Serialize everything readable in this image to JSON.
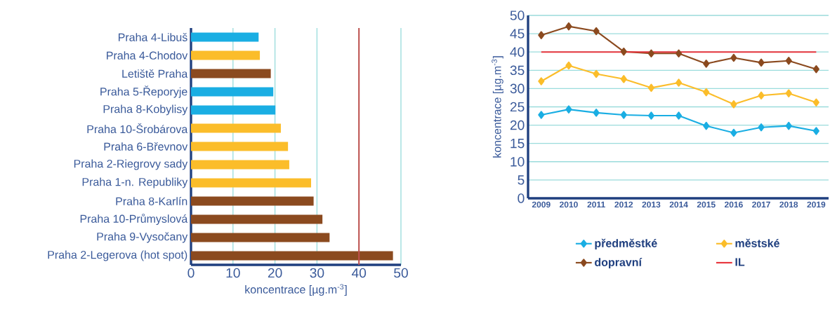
{
  "chart_data": [
    {
      "type": "bar",
      "orientation": "horizontal",
      "categories": [
        "Praha 4-Libuš",
        "Praha 4-Chodov",
        "Letiště Praha",
        "Praha 5-Řeporyje",
        "Praha 8-Kobylisy",
        "Praha 10-Šrobárova",
        "Praha 6-Břevnov",
        "Praha 2-Riegrovy sady",
        "Praha 1-n. Republiky",
        "Praha 8-Karlín",
        "Praha 10-Průmyslová",
        "Praha 9-Vysočany",
        "Praha 2-Legerova (hot spot)"
      ],
      "values": [
        16.1,
        16.4,
        19.0,
        19.6,
        20.1,
        21.4,
        23.1,
        23.4,
        28.6,
        29.2,
        31.3,
        33.0,
        48.1
      ],
      "colors": [
        "#1aaee3",
        "#fbbd2a",
        "#8b4a1f",
        "#1aaee3",
        "#1aaee3",
        "#fbbd2a",
        "#fbbd2a",
        "#fbbd2a",
        "#fbbd2a",
        "#8b4a1f",
        "#8b4a1f",
        "#8b4a1f",
        "#8b4a1f"
      ],
      "xlim": [
        0,
        50
      ],
      "xticks": [
        0,
        10,
        20,
        30,
        40,
        50
      ],
      "xlabel": "koncentrace [µg.m$^{-3}$]",
      "grid": "x",
      "ref_lines": [
        {
          "axis": "x",
          "value": 40,
          "color": "#c0504d"
        }
      ]
    },
    {
      "type": "line",
      "categories": [
        "2009",
        "2010",
        "2011",
        "2012",
        "2013",
        "2014",
        "2015",
        "2016",
        "2017",
        "2018",
        "2019"
      ],
      "series": [
        {
          "name": "předměstké",
          "color": "#1aaee3",
          "values": [
            22.8,
            24.3,
            23.4,
            22.8,
            22.6,
            22.6,
            19.8,
            17.9,
            19.4,
            19.8,
            18.4
          ]
        },
        {
          "name": "městské",
          "color": "#fbbd2a",
          "values": [
            32.0,
            36.3,
            34.0,
            32.6,
            30.2,
            31.6,
            29.0,
            25.7,
            28.1,
            28.7,
            26.2
          ]
        },
        {
          "name": "dopravní",
          "color": "#8b4a1f",
          "values": [
            44.6,
            47.0,
            45.7,
            40.1,
            39.6,
            39.6,
            36.8,
            38.4,
            37.1,
            37.6,
            35.3
          ]
        },
        {
          "name": "IL",
          "color": "#e8343c",
          "marker": "none",
          "values": [
            40,
            40,
            40,
            40,
            40,
            40,
            40,
            40,
            40,
            40,
            40
          ]
        }
      ],
      "ylim": [
        0,
        50
      ],
      "yticks": [
        0,
        5,
        10,
        15,
        20,
        25,
        30,
        35,
        40,
        45,
        50
      ],
      "ylabel": "koncentrace [µg.m$^{-3}$]",
      "grid": "y",
      "legend": "bottom",
      "marker": "diamond"
    }
  ]
}
